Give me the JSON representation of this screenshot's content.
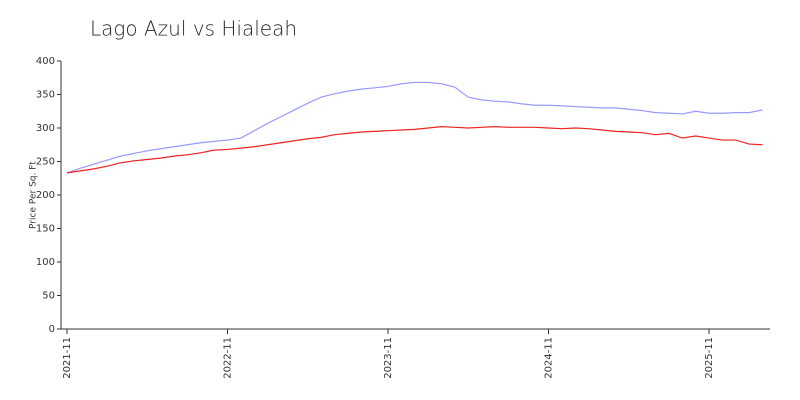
{
  "chart_data": {
    "type": "line",
    "title": "Lago Azul vs Hialeah",
    "ylabel": "Price Per Sq. Ft",
    "categories": [
      "2021-11",
      null,
      null,
      null,
      null,
      null,
      null,
      null,
      null,
      null,
      null,
      null,
      "2022-11",
      null,
      null,
      null,
      null,
      null,
      null,
      null,
      null,
      null,
      null,
      null,
      "2023-11",
      null,
      null,
      null,
      null,
      null,
      null,
      null,
      null,
      null,
      null,
      null,
      "2024-11",
      null,
      null,
      null,
      null,
      null,
      null,
      null,
      null,
      null,
      null,
      null,
      "2025-11",
      null,
      null,
      null,
      null
    ],
    "series": [
      {
        "color": "#9999ff",
        "values": [
          233,
          240,
          246,
          252,
          258,
          262,
          266,
          269,
          272,
          275,
          278,
          280,
          282,
          285,
          296,
          307,
          317,
          327,
          337,
          346,
          351,
          355,
          358,
          360,
          362,
          366,
          368,
          368,
          366,
          361,
          346,
          342,
          340,
          339,
          336,
          334,
          334,
          333,
          332,
          331,
          330,
          330,
          328,
          326,
          323,
          322,
          321,
          325,
          322,
          322,
          323,
          323,
          327
        ]
      },
      {
        "color": "#ee2222",
        "values": [
          233,
          236,
          239,
          243,
          248,
          251,
          253,
          255,
          258,
          260,
          263,
          267,
          268,
          270,
          272,
          275,
          278,
          281,
          284,
          286,
          290,
          292,
          294,
          295,
          296,
          297,
          298,
          300,
          302,
          301,
          300,
          301,
          302,
          301,
          301,
          301,
          300,
          299,
          300,
          299,
          297,
          295,
          294,
          293,
          290,
          292,
          285,
          288,
          285,
          282,
          282,
          276,
          275
        ]
      }
    ],
    "ylim": [
      0,
      400
    ],
    "yticks": [
      0,
      50,
      100,
      150,
      200,
      250,
      300,
      350,
      400
    ]
  }
}
